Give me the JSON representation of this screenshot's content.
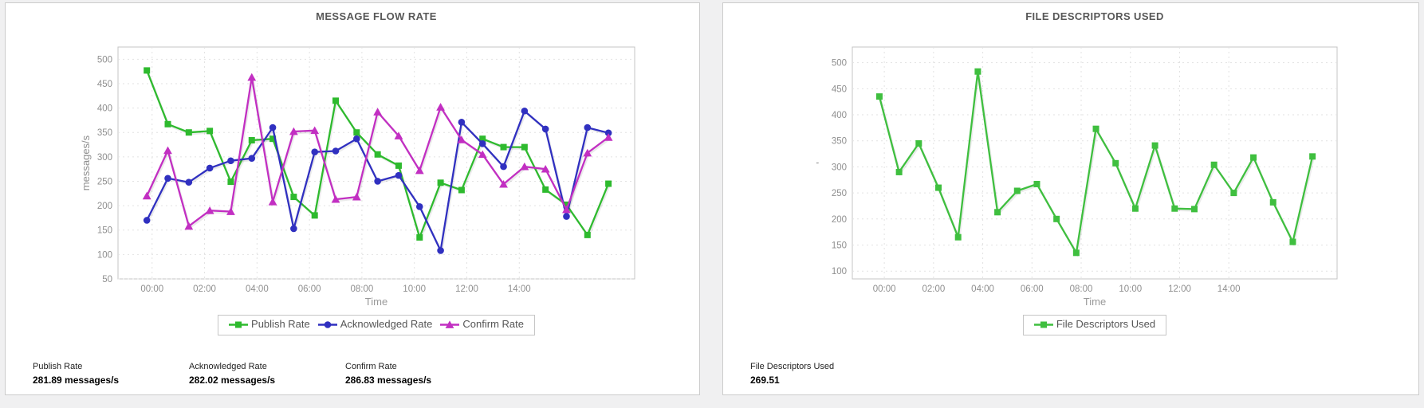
{
  "page": {
    "background_color": "#f0f0f1",
    "panel_border_color": "#cccccc"
  },
  "panels": [
    {
      "stats": [
        {
          "label": "Publish Rate",
          "value": "281.89 messages/s"
        },
        {
          "label": "Acknowledged Rate",
          "value": "282.02 messages/s"
        },
        {
          "label": "Confirm Rate",
          "value": "286.83 messages/s"
        }
      ]
    },
    {
      "stats": [
        {
          "label": "File Descriptors Used",
          "value": "269.51"
        }
      ]
    }
  ],
  "chart_data": [
    {
      "type": "line",
      "title": "MESSAGE FLOW RATE",
      "xlabel": "Time",
      "ylabel": "messages/s",
      "grid": true,
      "legend_position": "bottom",
      "x_tick_labels": [
        "00:00",
        "02:00",
        "04:00",
        "06:00",
        "08:00",
        "10:00",
        "12:00",
        "14:00"
      ],
      "x_tick_hours": [
        0,
        2,
        4,
        6,
        8,
        10,
        12,
        14
      ],
      "x_domain_hours": [
        -1.3,
        18.4
      ],
      "x_hours": [
        -0.2,
        0.6,
        1.4,
        2.2,
        3.0,
        3.8,
        4.6,
        5.4,
        6.2,
        7.0,
        7.8,
        8.6,
        9.4,
        10.2,
        11.0,
        11.8,
        12.6,
        13.4,
        14.2,
        15.0,
        15.8,
        16.6,
        17.4
      ],
      "ylim": [
        50,
        525
      ],
      "y_ticks": [
        50,
        100,
        150,
        200,
        250,
        300,
        350,
        400,
        450,
        500
      ],
      "series": [
        {
          "name": "Publish Rate",
          "marker": "square",
          "color": "#2eba2e",
          "values": [
            477,
            367,
            350,
            353,
            249,
            334,
            337,
            218,
            180,
            415,
            350,
            305,
            282,
            135,
            247,
            232,
            337,
            320,
            320,
            233,
            202,
            140,
            245
          ]
        },
        {
          "name": "Acknowledged Rate",
          "marker": "circle",
          "color": "#3030c0",
          "values": [
            170,
            256,
            248,
            277,
            292,
            297,
            360,
            153,
            310,
            312,
            337,
            250,
            262,
            198,
            108,
            371,
            327,
            280,
            394,
            357,
            178,
            360,
            349
          ]
        },
        {
          "name": "Confirm Rate",
          "marker": "triangle",
          "color": "#c22fc2",
          "values": [
            220,
            313,
            158,
            190,
            188,
            463,
            208,
            352,
            354,
            213,
            218,
            392,
            343,
            272,
            402,
            335,
            305,
            244,
            280,
            275,
            192,
            308,
            340
          ]
        }
      ]
    },
    {
      "type": "line",
      "title": "FILE DESCRIPTORS USED",
      "xlabel": "Time",
      "ylabel": "'",
      "grid": true,
      "legend_position": "bottom",
      "x_tick_labels": [
        "00:00",
        "02:00",
        "04:00",
        "06:00",
        "08:00",
        "10:00",
        "12:00",
        "14:00"
      ],
      "x_tick_hours": [
        0,
        2,
        4,
        6,
        8,
        10,
        12,
        14
      ],
      "x_domain_hours": [
        -1.3,
        18.4
      ],
      "x_hours": [
        -0.2,
        0.6,
        1.4,
        2.2,
        3.0,
        3.8,
        4.6,
        5.4,
        6.2,
        7.0,
        7.8,
        8.6,
        9.4,
        10.2,
        11.0,
        11.8,
        12.6,
        13.4,
        14.2,
        15.0,
        15.8,
        16.6,
        17.4
      ],
      "ylim": [
        85,
        530
      ],
      "y_ticks": [
        100,
        150,
        200,
        250,
        300,
        350,
        400,
        450,
        500
      ],
      "series": [
        {
          "name": "File Descriptors Used",
          "marker": "square",
          "color": "#3fbf3f",
          "values": [
            435,
            290,
            345,
            260,
            165,
            483,
            213,
            254,
            267,
            200,
            135,
            373,
            307,
            220,
            341,
            220,
            219,
            304,
            250,
            318,
            232,
            156,
            320
          ]
        }
      ]
    }
  ]
}
